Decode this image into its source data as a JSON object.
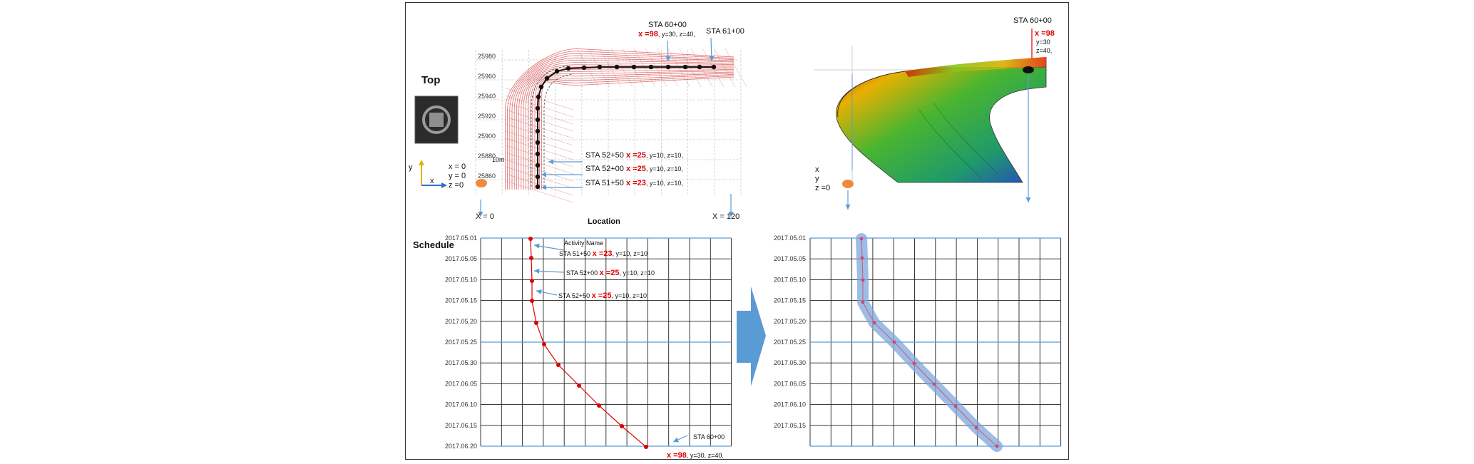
{
  "labels": {
    "top": "Top",
    "schedule": "Schedule",
    "location": "Location",
    "x0": "X = 0",
    "x120": "X = 120",
    "activity_name": "Activity Name",
    "scale": "10m"
  },
  "axes_top": {
    "y": "y",
    "x": "x",
    "origin": [
      "x = 0",
      "y = 0",
      "z =0"
    ]
  },
  "axes_3d": [
    "x",
    "y",
    "z =0"
  ],
  "stations_top": [
    {
      "sta": "STA 52+50",
      "x": "x =25",
      "rest": ", y=10, z=10,"
    },
    {
      "sta": "STA 52+00",
      "x": "x =25",
      "rest": ", y=10, z=10,"
    },
    {
      "sta": "STA 51+50",
      "x": "x =23",
      "rest": ", y=10, z=10,"
    }
  ],
  "sta_top_60": {
    "sta": "STA 60+00",
    "x": "x =98",
    "rest": ", y=30, z=40,"
  },
  "sta_top_61": "STA 61+00",
  "sta_3d": {
    "sta": "STA 60+00",
    "x": "x =98",
    "y": "y=30",
    "z": "z=40,"
  },
  "schedule_labels": [
    {
      "sta": "STA 51+50",
      "x": "x =23",
      "rest": ", y=10, z=10"
    },
    {
      "sta": "STA 52+00",
      "x": "x =25",
      "rest": ", y=10, z=10"
    },
    {
      "sta": "STA 52+50",
      "x": "x =25",
      "rest": ", y=10, z=10"
    }
  ],
  "schedule_end": {
    "sta": "STA 60+00",
    "x": "x =98",
    "rest": ", y=30, z=40."
  },
  "dates_left": [
    "2017.05.01",
    "2017.05.05",
    "2017.05.10",
    "2017.05.15",
    "2017.05.20",
    "2017.05.25",
    "2017.05.30",
    "2017.06.05",
    "2017.06.10",
    "2017.06.15",
    "2017.06.20"
  ],
  "dates_right": [
    "2017.05.01",
    "2017.05.05",
    "2017.05.10",
    "2017.05.15",
    "2017.05.20",
    "2017.05.25",
    "2017.05.30",
    "2017.06.05",
    "2017.06.10",
    "2017.06.15"
  ],
  "plan_ticks_y": [
    "25980",
    "25960",
    "25940",
    "25920",
    "25900",
    "25880",
    "25860"
  ],
  "colors": {
    "red": "#e00000",
    "blue_arrow": "#5b9bd5",
    "band": "#6f9fd8"
  }
}
